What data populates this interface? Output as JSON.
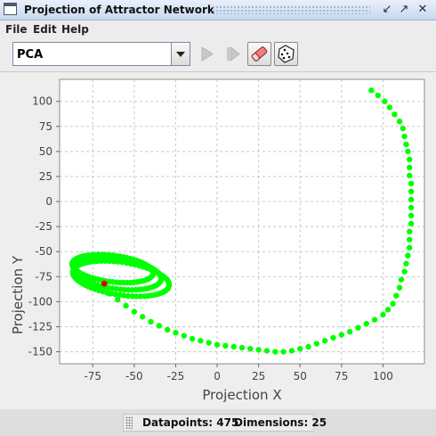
{
  "window": {
    "title": "Projection of Attractor Network"
  },
  "menu": {
    "items": [
      "File",
      "Edit",
      "Help"
    ]
  },
  "toolbar": {
    "projection_method": "PCA",
    "buttons": [
      {
        "name": "play-button",
        "icon": "play-icon",
        "enabled": false
      },
      {
        "name": "step-button",
        "icon": "step-icon",
        "enabled": false
      },
      {
        "name": "clear-button",
        "icon": "eraser-icon",
        "enabled": true
      },
      {
        "name": "randomize-button",
        "icon": "dice-icon",
        "enabled": true
      }
    ]
  },
  "chart_data": {
    "type": "scatter",
    "xlabel": "Projection X",
    "ylabel": "Projection Y",
    "xlim": [
      -95,
      125
    ],
    "ylim": [
      -162,
      122
    ],
    "xticks": [
      -75,
      -50,
      -25,
      0,
      25,
      50,
      75,
      100
    ],
    "yticks": [
      100,
      75,
      50,
      25,
      0,
      -25,
      -50,
      -75,
      -100,
      -125,
      -150
    ],
    "grid": true,
    "point_color": "#00ff00",
    "current_point_color": "#d40000",
    "current_point": [
      -68,
      -82
    ],
    "transient_path": [
      [
        93,
        111
      ],
      [
        97,
        106
      ],
      [
        101,
        100
      ],
      [
        104,
        94
      ],
      [
        107,
        87
      ],
      [
        110,
        80
      ],
      [
        112,
        73
      ],
      [
        113,
        65
      ],
      [
        114,
        57
      ],
      [
        115,
        50
      ],
      [
        116,
        42
      ],
      [
        116,
        34
      ],
      [
        116,
        26
      ],
      [
        117,
        18
      ],
      [
        117,
        10
      ],
      [
        117,
        2
      ],
      [
        117,
        -6
      ],
      [
        117,
        -14
      ],
      [
        117,
        -22
      ],
      [
        116,
        -30
      ],
      [
        116,
        -38
      ],
      [
        116,
        -46
      ],
      [
        115,
        -54
      ],
      [
        114,
        -62
      ],
      [
        113,
        -70
      ],
      [
        111,
        -78
      ],
      [
        110,
        -86
      ],
      [
        108,
        -94
      ],
      [
        106,
        -102
      ],
      [
        103,
        -108
      ],
      [
        100,
        -113
      ],
      [
        95,
        -118
      ],
      [
        90,
        -122
      ],
      [
        85,
        -126
      ],
      [
        80,
        -130
      ],
      [
        75,
        -133
      ],
      [
        70,
        -136
      ],
      [
        65,
        -139
      ],
      [
        60,
        -142
      ],
      [
        55,
        -145
      ],
      [
        50,
        -147
      ],
      [
        45,
        -149
      ],
      [
        40,
        -150
      ],
      [
        35,
        -150
      ],
      [
        30,
        -149
      ],
      [
        25,
        -148
      ],
      [
        20,
        -147
      ],
      [
        15,
        -146
      ],
      [
        10,
        -145
      ],
      [
        5,
        -144
      ],
      [
        0,
        -143
      ],
      [
        -5,
        -141
      ],
      [
        -10,
        -139
      ],
      [
        -15,
        -137
      ],
      [
        -20,
        -134
      ],
      [
        -25,
        -131
      ],
      [
        -30,
        -128
      ],
      [
        -35,
        -124
      ],
      [
        -40,
        -120
      ],
      [
        -45,
        -115
      ],
      [
        -50,
        -110
      ],
      [
        -55,
        -104
      ],
      [
        -60,
        -98
      ],
      [
        -65,
        -92
      ]
    ],
    "attractor_cycles": [
      {
        "cx": -63,
        "cy": -67,
        "rx": 25,
        "ry": 13,
        "tilt": -0.25
      },
      {
        "cx": -60,
        "cy": -72,
        "rx": 27,
        "ry": 15,
        "tilt": -0.28
      },
      {
        "cx": -58,
        "cy": -77,
        "rx": 30,
        "ry": 16,
        "tilt": -0.3
      }
    ]
  },
  "status": {
    "datapoints_label": "Datapoints: 475",
    "dimensions_label": "Dimensions: 25"
  }
}
